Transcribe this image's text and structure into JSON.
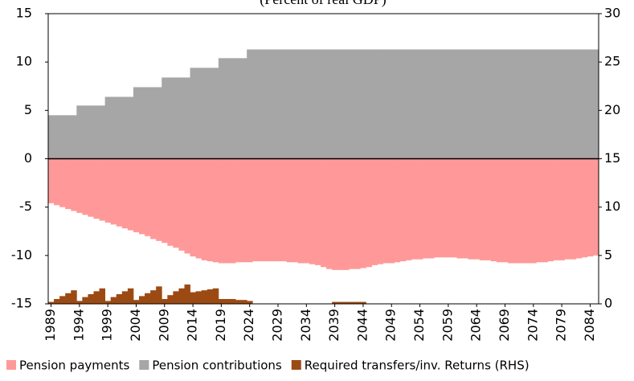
{
  "chart_data": {
    "type": "bar",
    "title": "(Percent of real GDP)",
    "x": [
      1989,
      1990,
      1991,
      1992,
      1993,
      1994,
      1995,
      1996,
      1997,
      1998,
      1999,
      2000,
      2001,
      2002,
      2003,
      2004,
      2005,
      2006,
      2007,
      2008,
      2009,
      2010,
      2011,
      2012,
      2013,
      2014,
      2015,
      2016,
      2017,
      2018,
      2019,
      2020,
      2021,
      2022,
      2023,
      2024,
      2025,
      2026,
      2027,
      2028,
      2029,
      2030,
      2031,
      2032,
      2033,
      2034,
      2035,
      2036,
      2037,
      2038,
      2039,
      2040,
      2041,
      2042,
      2043,
      2044,
      2045,
      2046,
      2047,
      2048,
      2049,
      2050,
      2051,
      2052,
      2053,
      2054,
      2055,
      2056,
      2057,
      2058,
      2059,
      2060,
      2061,
      2062,
      2063,
      2064,
      2065,
      2066,
      2067,
      2068,
      2069,
      2070,
      2071,
      2072,
      2073,
      2074,
      2075,
      2076,
      2077,
      2078,
      2079,
      2080,
      2081,
      2082,
      2083,
      2084,
      2085
    ],
    "series": [
      {
        "name": "Pension payments",
        "color": "#ff9999",
        "values": [
          -4.6,
          -4.8,
          -5.0,
          -5.2,
          -5.4,
          -5.6,
          -5.8,
          -6.0,
          -6.2,
          -6.4,
          -6.6,
          -6.8,
          -7.0,
          -7.2,
          -7.4,
          -7.6,
          -7.8,
          -8.0,
          -8.3,
          -8.5,
          -8.7,
          -9.0,
          -9.2,
          -9.5,
          -9.8,
          -10.1,
          -10.3,
          -10.5,
          -10.6,
          -10.7,
          -10.8,
          -10.8,
          -10.8,
          -10.7,
          -10.7,
          -10.7,
          -10.6,
          -10.6,
          -10.6,
          -10.6,
          -10.6,
          -10.6,
          -10.7,
          -10.7,
          -10.8,
          -10.8,
          -10.9,
          -11.0,
          -11.2,
          -11.4,
          -11.5,
          -11.5,
          -11.5,
          -11.4,
          -11.4,
          -11.3,
          -11.2,
          -11.0,
          -10.9,
          -10.8,
          -10.8,
          -10.7,
          -10.6,
          -10.5,
          -10.4,
          -10.4,
          -10.3,
          -10.3,
          -10.2,
          -10.2,
          -10.2,
          -10.2,
          -10.3,
          -10.3,
          -10.4,
          -10.4,
          -10.5,
          -10.5,
          -10.6,
          -10.7,
          -10.7,
          -10.8,
          -10.8,
          -10.8,
          -10.8,
          -10.8,
          -10.7,
          -10.7,
          -10.6,
          -10.5,
          -10.5,
          -10.4,
          -10.4,
          -10.3,
          -10.2,
          -10.1,
          -10.0
        ]
      },
      {
        "name": "Pension contributions",
        "color": "#a6a6a6",
        "values": [
          4.5,
          4.5,
          4.5,
          4.5,
          4.5,
          5.5,
          5.5,
          5.5,
          5.5,
          5.5,
          6.4,
          6.4,
          6.4,
          6.4,
          6.4,
          7.4,
          7.4,
          7.4,
          7.4,
          7.4,
          8.4,
          8.4,
          8.4,
          8.4,
          8.4,
          9.4,
          9.4,
          9.4,
          9.4,
          9.4,
          10.4,
          10.4,
          10.4,
          10.4,
          10.4,
          11.3,
          11.3,
          11.3,
          11.3,
          11.3,
          11.3,
          11.3,
          11.3,
          11.3,
          11.3,
          11.3,
          11.3,
          11.3,
          11.3,
          11.3,
          11.3,
          11.3,
          11.3,
          11.3,
          11.3,
          11.3,
          11.3,
          11.3,
          11.3,
          11.3,
          11.3,
          11.3,
          11.3,
          11.3,
          11.3,
          11.3,
          11.3,
          11.3,
          11.3,
          11.3,
          11.3,
          11.3,
          11.3,
          11.3,
          11.3,
          11.3,
          11.3,
          11.3,
          11.3,
          11.3,
          11.3,
          11.3,
          11.3,
          11.3,
          11.3,
          11.3,
          11.3,
          11.3,
          11.3,
          11.3,
          11.3,
          11.3,
          11.3,
          11.3,
          11.3,
          11.3,
          11.3
        ]
      },
      {
        "name": "Required transfers/inv. Returns (RHS)",
        "color": "#9c4a14",
        "axis": "y2",
        "values": [
          0.2,
          0.5,
          0.8,
          1.1,
          1.4,
          0.3,
          0.7,
          1.0,
          1.3,
          1.6,
          0.3,
          0.7,
          1.0,
          1.3,
          1.6,
          0.4,
          0.8,
          1.1,
          1.4,
          1.8,
          0.5,
          0.9,
          1.3,
          1.6,
          2.0,
          1.2,
          1.3,
          1.4,
          1.5,
          1.6,
          0.5,
          0.5,
          0.5,
          0.4,
          0.4,
          0.3,
          0,
          0,
          0,
          0,
          0,
          0,
          0,
          0,
          0,
          0,
          0,
          0,
          0,
          0,
          0.2,
          0.2,
          0.2,
          0.2,
          0.2,
          0.2,
          0,
          0,
          0,
          0,
          0,
          0,
          0,
          0,
          0,
          0,
          0,
          0,
          0,
          0,
          0,
          0,
          0,
          0,
          0,
          0,
          0,
          0,
          0,
          0,
          0,
          0,
          0,
          0,
          0,
          0,
          0,
          0,
          0,
          0,
          0,
          0,
          0,
          0,
          0,
          0,
          0
        ]
      }
    ],
    "xlim": [
      1988.5,
      2085.5
    ],
    "xticks": [
      1989,
      1994,
      1999,
      2004,
      2009,
      2014,
      2019,
      2024,
      2029,
      2034,
      2039,
      2044,
      2049,
      2054,
      2059,
      2064,
      2069,
      2074,
      2079,
      2084
    ],
    "ylim": [
      -15,
      15
    ],
    "yticks": [
      -15,
      -10,
      -5,
      0,
      5,
      10,
      15
    ],
    "y2lim": [
      0,
      30
    ],
    "y2ticks": [
      0,
      5,
      10,
      15,
      20,
      25,
      30
    ]
  }
}
